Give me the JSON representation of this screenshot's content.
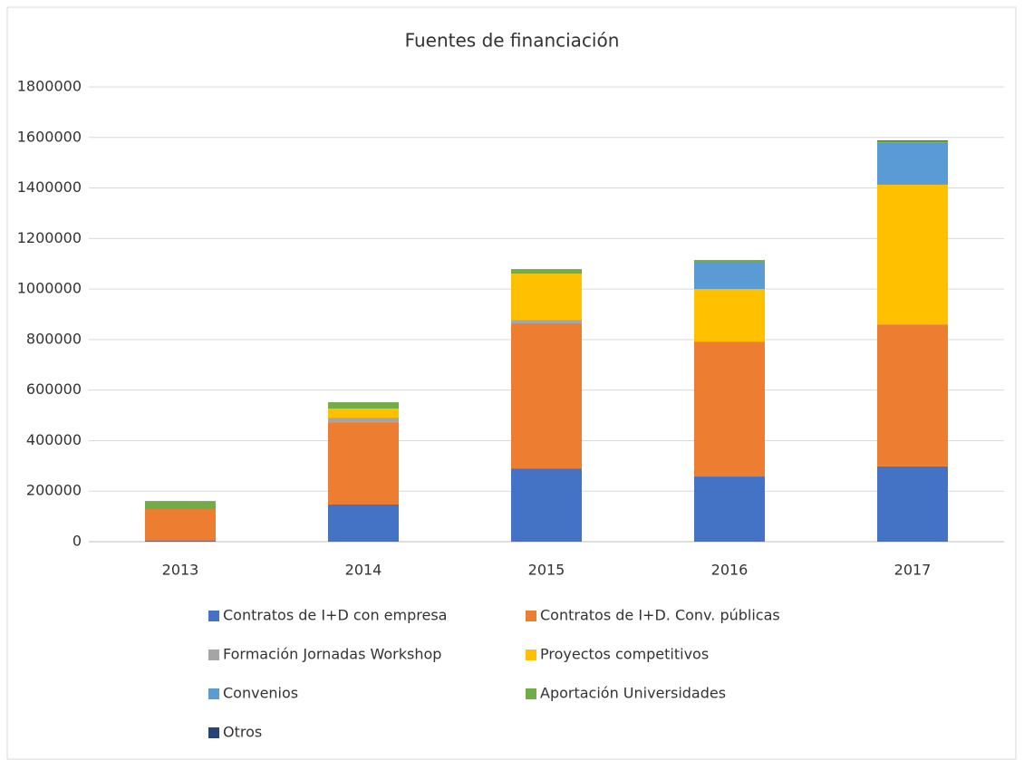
{
  "chart_data": {
    "type": "stacked_bar",
    "title": "Fuentes de financiación",
    "categories": [
      "2013",
      "2014",
      "2015",
      "2016",
      "2017"
    ],
    "series": [
      {
        "name": "Contratos de I+D con empresa",
        "color": "#4472c4",
        "values": [
          5000,
          147000,
          290000,
          258000,
          298000
        ]
      },
      {
        "name": "Contratos de I+D. Conv. públicas",
        "color": "#ed7d31",
        "values": [
          124000,
          326000,
          574000,
          534000,
          562000
        ]
      },
      {
        "name": "Formación Jornadas Workshop",
        "color": "#a5a5a5",
        "values": [
          0,
          18000,
          14000,
          0,
          0
        ]
      },
      {
        "name": "Proyectos competitivos",
        "color": "#ffc000",
        "values": [
          0,
          36000,
          183000,
          208000,
          553000
        ]
      },
      {
        "name": "Convenios",
        "color": "#5b9bd5",
        "values": [
          0,
          0,
          0,
          108000,
          165000
        ]
      },
      {
        "name": "Aportación Universidades",
        "color": "#70ad47",
        "values": [
          32000,
          25000,
          18000,
          7000,
          7000
        ]
      },
      {
        "name": "Otros",
        "color": "#264478",
        "values": [
          0,
          0,
          0,
          0,
          3000
        ]
      }
    ],
    "ylim": [
      0,
      1800000
    ],
    "yticks": [
      0,
      200000,
      400000,
      600000,
      800000,
      1000000,
      1200000,
      1400000,
      1600000,
      1800000
    ],
    "grid": true,
    "legend": "bottom"
  }
}
